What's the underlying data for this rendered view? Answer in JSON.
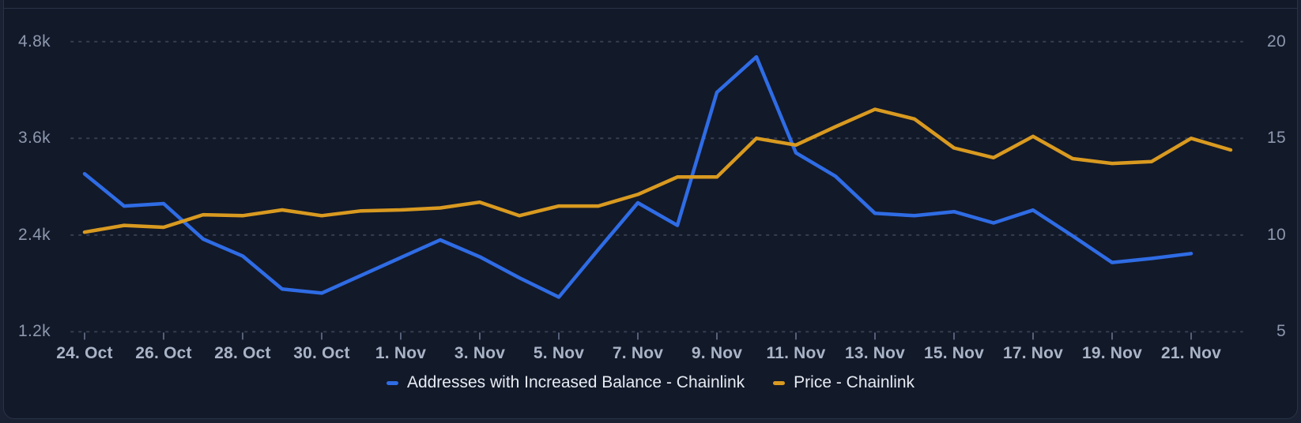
{
  "page": {
    "background": "#1a2132"
  },
  "panel": {
    "background": "#121929",
    "border_color": "#2a3347"
  },
  "legend": {
    "items": [
      {
        "label": "Addresses with Increased Balance - Chainlink",
        "color": "#2f6ce5"
      },
      {
        "label": "Price - Chainlink",
        "color": "#d99a20"
      }
    ]
  },
  "chart_data": {
    "type": "line",
    "title": "",
    "grid": "dotted horizontal gridlines",
    "legend_position": "bottom center",
    "x": [
      "24. Oct",
      "25. Oct",
      "26. Oct",
      "27. Oct",
      "28. Oct",
      "29. Oct",
      "30. Oct",
      "31. Oct",
      "1. Nov",
      "2. Nov",
      "3. Nov",
      "4. Nov",
      "5. Nov",
      "6. Nov",
      "7. Nov",
      "8. Nov",
      "9. Nov",
      "10. Nov",
      "11. Nov",
      "12. Nov",
      "13. Nov",
      "14. Nov",
      "15. Nov",
      "16. Nov",
      "17. Nov",
      "18. Nov",
      "19. Nov",
      "20. Nov",
      "21. Nov",
      "22. Nov"
    ],
    "x_axis_tick_labels": [
      "24. Oct",
      "26. Oct",
      "28. Oct",
      "30. Oct",
      "1. Nov",
      "3. Nov",
      "5. Nov",
      "7. Nov",
      "9. Nov",
      "11. Nov",
      "13. Nov",
      "15. Nov",
      "17. Nov",
      "19. Nov",
      "21. Nov"
    ],
    "left_axis": {
      "tick_labels": [
        "4.8k",
        "3.6k",
        "2.4k",
        "1.2k"
      ],
      "tick_values": [
        4800,
        3600,
        2400,
        1200
      ],
      "min": 1200,
      "max": 4800
    },
    "right_axis": {
      "tick_labels": [
        "20",
        "15",
        "10",
        "5"
      ],
      "tick_values": [
        20,
        15,
        10,
        5
      ],
      "min": 5,
      "max": 20
    },
    "series": [
      {
        "name": "Addresses with Increased Balance - Chainlink",
        "axis": "left",
        "color": "#2f6ce5",
        "values": [
          3160,
          2760,
          2790,
          2350,
          2140,
          1730,
          1680,
          1900,
          2120,
          2340,
          2130,
          1870,
          1630,
          2220,
          2800,
          2520,
          4170,
          4610,
          3420,
          3130,
          2670,
          2640,
          2690,
          2550,
          2710,
          2390,
          2060,
          2110,
          2170,
          null
        ]
      },
      {
        "name": "Price - Chainlink",
        "axis": "right",
        "color": "#d99a20",
        "values": [
          10.15,
          10.5,
          10.4,
          11.05,
          11.0,
          11.3,
          11.0,
          11.25,
          11.3,
          11.4,
          11.7,
          11.0,
          11.5,
          11.5,
          12.1,
          13.0,
          13.0,
          15.0,
          14.65,
          15.6,
          16.5,
          16.0,
          14.5,
          14.0,
          15.1,
          13.95,
          13.7,
          13.8,
          15.0,
          14.4
        ]
      }
    ]
  }
}
